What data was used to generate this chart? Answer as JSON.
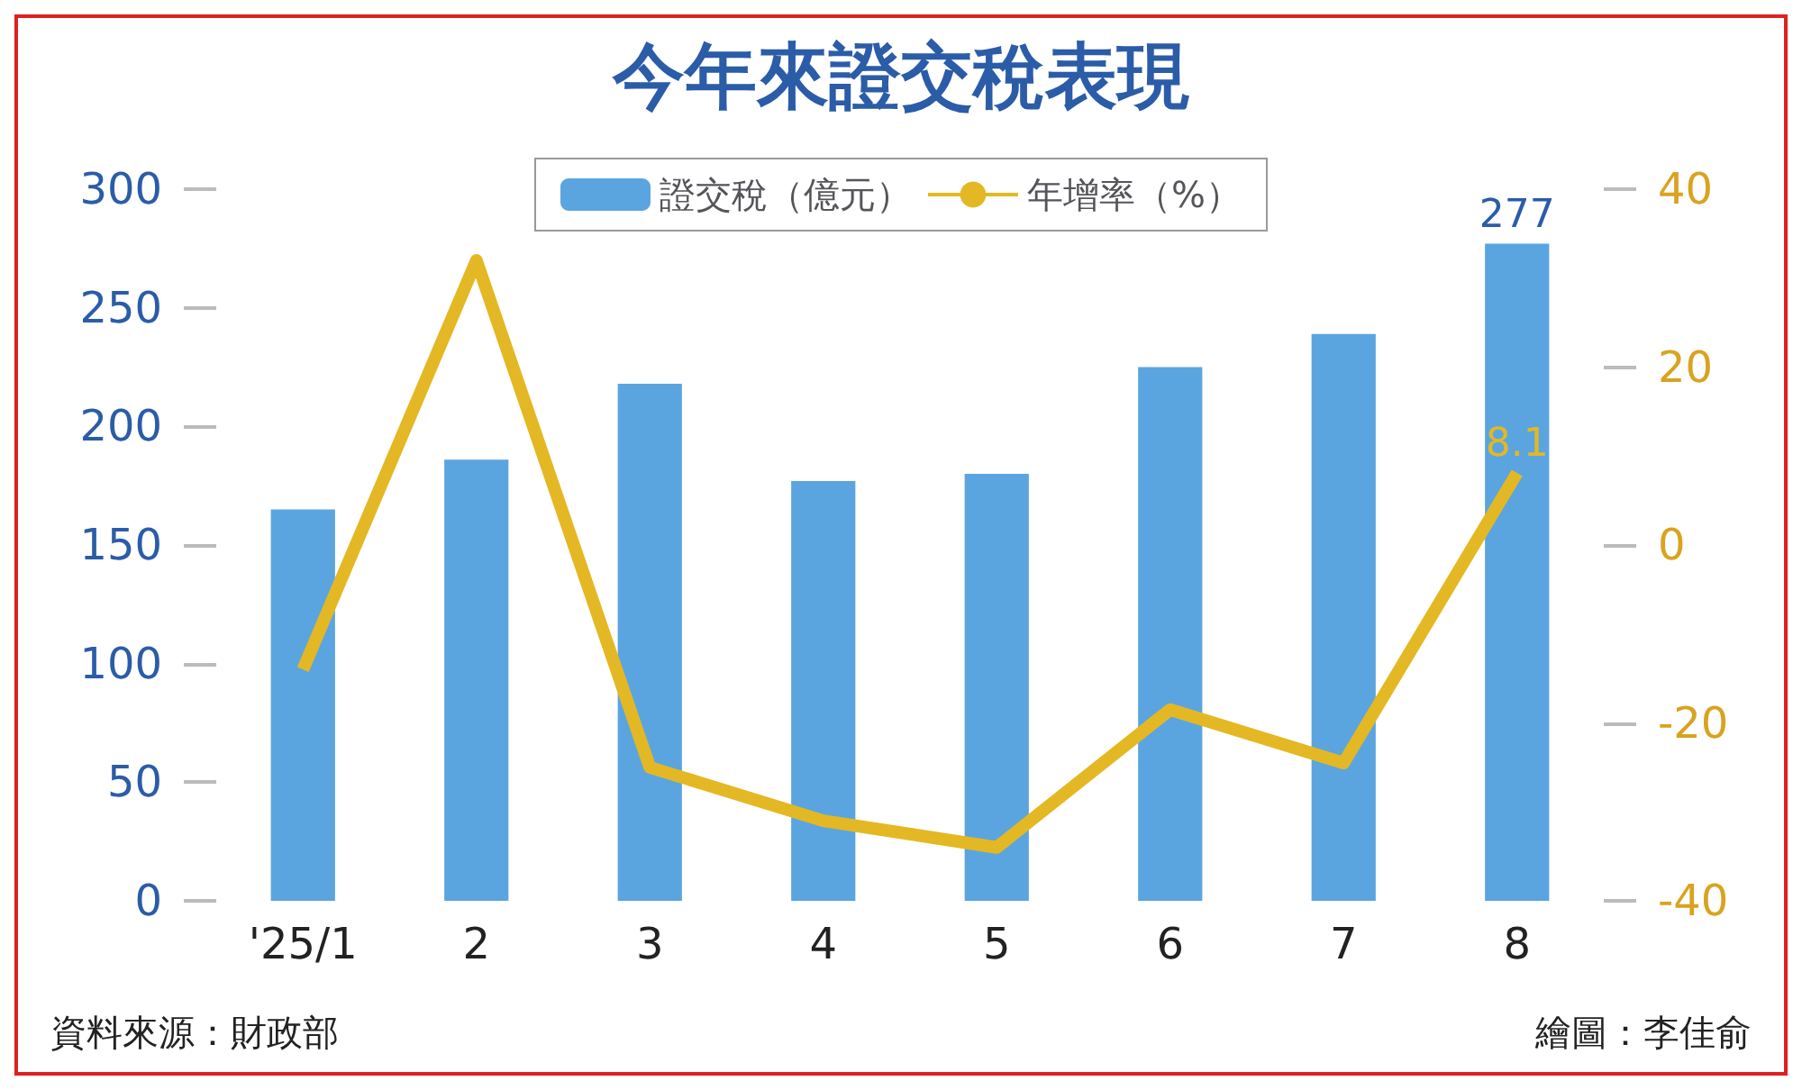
{
  "chart_data": {
    "type": "bar",
    "title": "今年來證交稅表現",
    "categories": [
      "'25/1",
      "2",
      "3",
      "4",
      "5",
      "6",
      "7",
      "8"
    ],
    "series": [
      {
        "name": "證交稅（億元）",
        "color": "#5aa5e0",
        "values": [
          165,
          186,
          218,
          177,
          180,
          225,
          239,
          277
        ],
        "value_labels": [
          null,
          null,
          null,
          null,
          null,
          null,
          null,
          "277"
        ]
      },
      {
        "name": "年增率（%）",
        "type": "line",
        "axis": "y2",
        "color": "#e3b824",
        "values": [
          -14,
          32,
          -25,
          -31,
          -34,
          -18.5,
          -24.5,
          8.1
        ],
        "value_labels": [
          null,
          null,
          null,
          null,
          null,
          null,
          null,
          "8.1"
        ]
      }
    ],
    "ylim": [
      0,
      300
    ],
    "yticks": [
      0,
      50,
      100,
      150,
      200,
      250,
      300
    ],
    "y2lim": [
      -40,
      40
    ],
    "y2ticks": [
      -40,
      -20,
      0,
      20,
      40
    ],
    "legend": "top",
    "grid": false,
    "marker": "none",
    "annotations": [
      "資料來源：財政部",
      "繪圖：李佳俞"
    ]
  }
}
